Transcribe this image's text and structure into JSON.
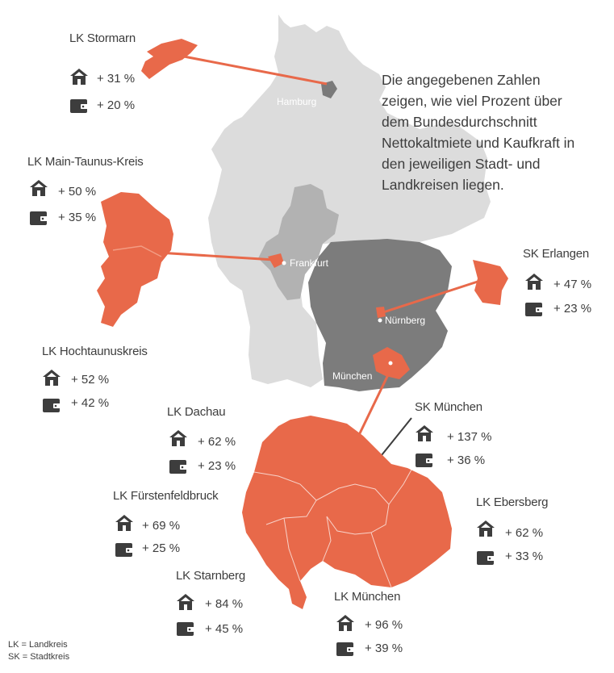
{
  "note": "Die angegebenen Zahlen zeigen, wie viel Prozent über dem Bundesdurchschnitt Nettokaltmiete und Kaufkraft in den jeweiligen Stadt- und Landkreisen liegen.",
  "note_lines": [
    "Die angegebenen Zahlen",
    "zeigen, wie viel Prozent über",
    "dem Bundesdurchschnitt",
    "Nettokaltmiete und Kaufkraft in",
    "den jeweiligen Stadt- und",
    "Landkreisen liegen."
  ],
  "cities": {
    "hamburg": "Hamburg",
    "frankfurt": "Frankfurt",
    "nuernberg": "Nürnberg",
    "muenchen": "München"
  },
  "districts": [
    {
      "id": "stormarn",
      "name": "LK Stormarn",
      "rent": "+ 31 %",
      "purchasing_power": "+ 20 %"
    },
    {
      "id": "main-taunus",
      "name": "LK Main-Taunus-Kreis",
      "rent": "+ 50 %",
      "purchasing_power": "+ 35 %"
    },
    {
      "id": "hochtaunus",
      "name": "LK Hochtaunuskreis",
      "rent": "+ 52 %",
      "purchasing_power": "+ 42 %"
    },
    {
      "id": "erlangen",
      "name": "SK Erlangen",
      "rent": "+ 47 %",
      "purchasing_power": "+ 23 %"
    },
    {
      "id": "dachau",
      "name": "LK Dachau",
      "rent": "+ 62 %",
      "purchasing_power": "+ 23 %"
    },
    {
      "id": "sk-muenchen",
      "name": "SK München",
      "rent": "+ 137 %",
      "purchasing_power": "+ 36 %"
    },
    {
      "id": "fuerstenfeldbruck",
      "name": "LK Fürstenfeldbruck",
      "rent": "+ 69 %",
      "purchasing_power": "+ 25 %"
    },
    {
      "id": "ebersberg",
      "name": "LK Ebersberg",
      "rent": "+ 62 %",
      "purchasing_power": "+ 33 %"
    },
    {
      "id": "starnberg",
      "name": "LK Starnberg",
      "rent": "+ 84 %",
      "purchasing_power": "+ 45 %"
    },
    {
      "id": "lk-muenchen",
      "name": "LK München",
      "rent": "+ 96 %",
      "purchasing_power": "+ 39 %"
    }
  ],
  "legend": [
    "LK = Landkreis",
    "SK = Stadtkreis"
  ],
  "icons": {
    "rent": "house-icon",
    "purchasing_power": "wallet-icon"
  },
  "colors": {
    "highlight": "#e8694a",
    "germany": "#dcdcdc",
    "hessen": "#b2b2b2",
    "bayern": "#7c7c7c",
    "text": "#3d3d3d"
  }
}
